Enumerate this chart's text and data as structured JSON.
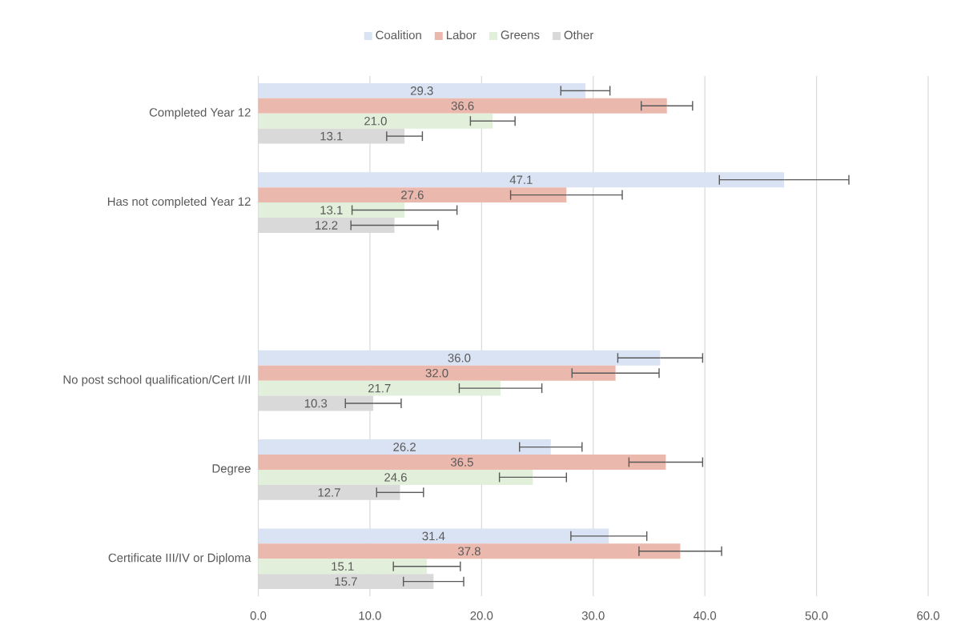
{
  "chart_data": {
    "type": "bar",
    "orientation": "horizontal",
    "categories": [
      "Completed Year 12",
      "Has not completed Year 12",
      null,
      "No post school qualification/Cert I/II",
      "Degree",
      "Certificate III/IV or Diploma"
    ],
    "series": [
      {
        "name": "Coalition",
        "color": "#dae3f3",
        "values": [
          29.3,
          47.1,
          null,
          36.0,
          26.2,
          31.4
        ],
        "value_labels": [
          "29.3",
          "47.1",
          null,
          "36.0",
          "26.2",
          "31.4"
        ],
        "errors": [
          2.2,
          5.8,
          null,
          3.8,
          2.8,
          3.4
        ]
      },
      {
        "name": "Labor",
        "color": "#ebb8ad",
        "values": [
          36.6,
          27.6,
          null,
          32.0,
          36.5,
          37.8
        ],
        "value_labels": [
          "36.6",
          "27.6",
          null,
          "32.0",
          "36.5",
          "37.8"
        ],
        "errors": [
          2.3,
          5.0,
          null,
          3.9,
          3.3,
          3.7
        ]
      },
      {
        "name": "Greens",
        "color": "#e2efda",
        "values": [
          21.0,
          13.1,
          null,
          21.7,
          24.6,
          15.1
        ],
        "value_labels": [
          "21.0",
          "13.1",
          null,
          "21.7",
          "24.6",
          "15.1"
        ],
        "errors": [
          2.0,
          4.7,
          null,
          3.7,
          3.0,
          3.0
        ]
      },
      {
        "name": "Other",
        "color": "#d9d9d9",
        "values": [
          13.1,
          12.2,
          null,
          10.3,
          12.7,
          15.7
        ],
        "value_labels": [
          "13.1",
          "12.2",
          null,
          "10.3",
          "12.7",
          "15.7"
        ],
        "errors": [
          1.6,
          3.9,
          null,
          2.5,
          2.1,
          2.7
        ]
      }
    ],
    "xlim": [
      0,
      60
    ],
    "xticks": [
      {
        "value": 0,
        "label": "0.0"
      },
      {
        "value": 10,
        "label": "10.0"
      },
      {
        "value": 20,
        "label": "20.0"
      },
      {
        "value": 30,
        "label": "30.0"
      },
      {
        "value": 40,
        "label": "40.0"
      },
      {
        "value": 50,
        "label": "50.0"
      },
      {
        "value": 60,
        "label": "60.0"
      }
    ],
    "grid": "x",
    "legend": "top"
  }
}
